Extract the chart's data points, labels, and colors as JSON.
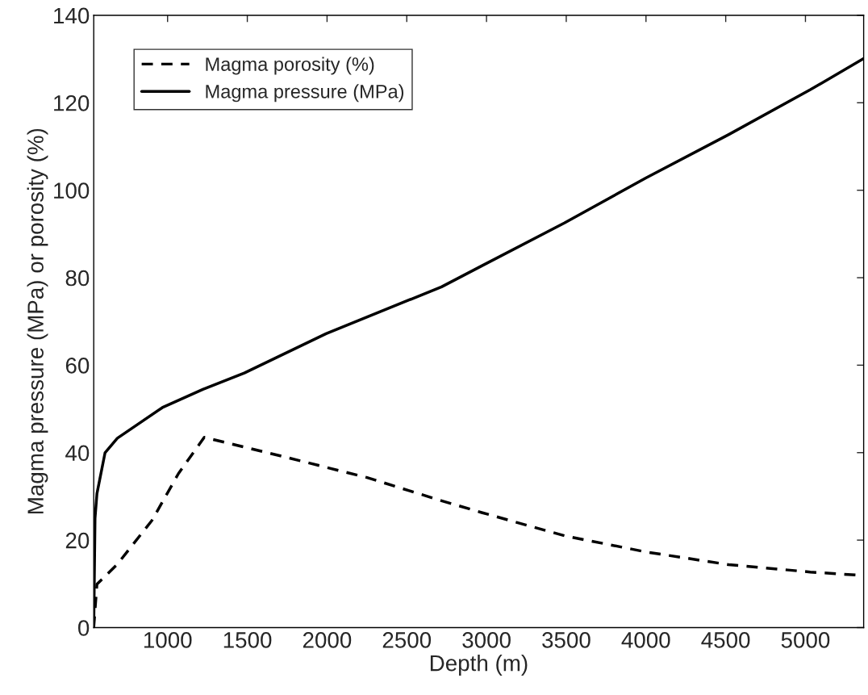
{
  "chart_data": {
    "type": "line",
    "xlabel": "Depth (m)",
    "ylabel": "Magma pressure (MPa) or porosity (%)",
    "xlim": [
      537,
      5365
    ],
    "ylim": [
      0,
      140
    ],
    "xticks": [
      1000,
      1500,
      2000,
      2500,
      3000,
      3500,
      4000,
      4500,
      5000
    ],
    "yticks": [
      0,
      20,
      40,
      60,
      80,
      100,
      120,
      140
    ],
    "grid": false,
    "legend": "top left",
    "series": [
      {
        "name": "Magma porosity (%)",
        "color": "#000000",
        "line_style": "dashed",
        "x": [
          537,
          557,
          685,
          902,
          1068,
          1230,
          1737,
          2251,
          2718,
          2970,
          3488,
          3999,
          4517,
          5031,
          5365
        ],
        "values": [
          0,
          9.9,
          14.5,
          24.5,
          35.2,
          43.5,
          39,
          34.3,
          29,
          26.3,
          21,
          17.3,
          14.4,
          12.7,
          11.9
        ]
      },
      {
        "name": "Magma pressure (MPa)",
        "color": "#000000",
        "line_style": "solid",
        "x": [
          537,
          545,
          557,
          608,
          685,
          967,
          1224,
          1481,
          1994,
          2507,
          2718,
          2970,
          3488,
          3999,
          4517,
          5031,
          5365
        ],
        "values": [
          0,
          25,
          30.6,
          40,
          43.3,
          50.3,
          54.5,
          58.2,
          67.2,
          74.8,
          77.9,
          82.7,
          92.5,
          102.8,
          112.7,
          123,
          130.1
        ]
      }
    ]
  }
}
